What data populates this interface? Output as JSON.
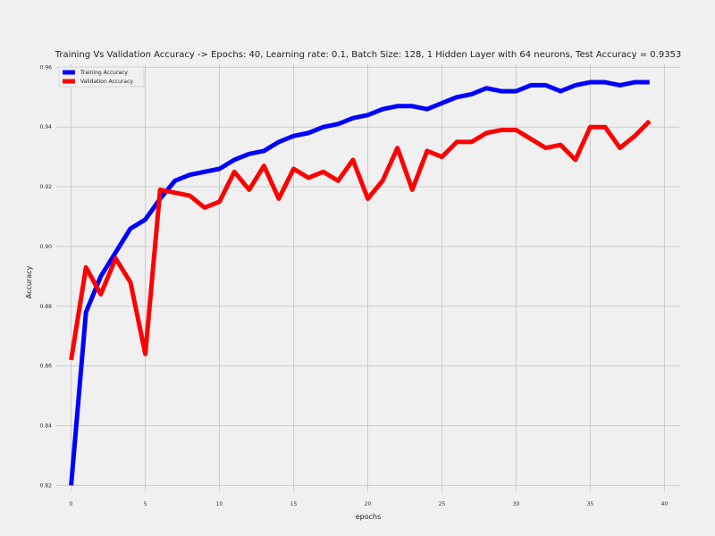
{
  "chart_data": {
    "type": "line",
    "title": "Training Vs Validation Accuracy -> Epochs: 40, Learning rate: 0.1, Batch Size: 128, 1 Hidden Layer with 64 neurons, Test Accuracy = 0.9353",
    "xlabel": "epochs",
    "ylabel": "Accuracy",
    "xlim": [
      -1,
      41
    ],
    "ylim": [
      0.818,
      0.961
    ],
    "x_ticks": [
      0,
      5,
      10,
      15,
      20,
      25,
      30,
      35,
      40
    ],
    "y_ticks": [
      0.82,
      0.84,
      0.86,
      0.88,
      0.9,
      0.92,
      0.94,
      0.96
    ],
    "x_tick_labels": [
      "0",
      "5",
      "10",
      "15",
      "20",
      "25",
      "30",
      "35",
      "40"
    ],
    "y_tick_labels": [
      "0.82",
      "0.84",
      "0.86",
      "0.88",
      "0.90",
      "0.92",
      "0.94",
      "0.96"
    ],
    "grid": true,
    "legend": "top-left",
    "x": [
      0,
      1,
      2,
      3,
      4,
      5,
      6,
      7,
      8,
      9,
      10,
      11,
      12,
      13,
      14,
      15,
      16,
      17,
      18,
      19,
      20,
      21,
      22,
      23,
      24,
      25,
      26,
      27,
      28,
      29,
      30,
      31,
      32,
      33,
      34,
      35,
      36,
      37,
      38,
      39
    ],
    "series": [
      {
        "name": "Training Accuracy",
        "color": "#0000ff",
        "values": [
          0.82,
          0.878,
          0.89,
          0.898,
          0.906,
          0.909,
          0.916,
          0.922,
          0.924,
          0.925,
          0.926,
          0.929,
          0.931,
          0.932,
          0.935,
          0.937,
          0.938,
          0.94,
          0.941,
          0.943,
          0.944,
          0.946,
          0.947,
          0.947,
          0.946,
          0.948,
          0.95,
          0.951,
          0.953,
          0.952,
          0.952,
          0.954,
          0.954,
          0.952,
          0.954,
          0.955,
          0.955,
          0.954,
          0.955,
          0.955
        ]
      },
      {
        "name": "Validation Accuracy",
        "color": "#ff0000",
        "values": [
          0.862,
          0.893,
          0.884,
          0.896,
          0.888,
          0.864,
          0.919,
          0.918,
          0.917,
          0.913,
          0.915,
          0.925,
          0.919,
          0.927,
          0.916,
          0.926,
          0.923,
          0.925,
          0.922,
          0.929,
          0.916,
          0.922,
          0.933,
          0.919,
          0.932,
          0.93,
          0.935,
          0.935,
          0.938,
          0.939,
          0.939,
          0.936,
          0.933,
          0.934,
          0.929,
          0.94,
          0.94,
          0.933,
          0.937,
          0.942
        ]
      }
    ]
  }
}
